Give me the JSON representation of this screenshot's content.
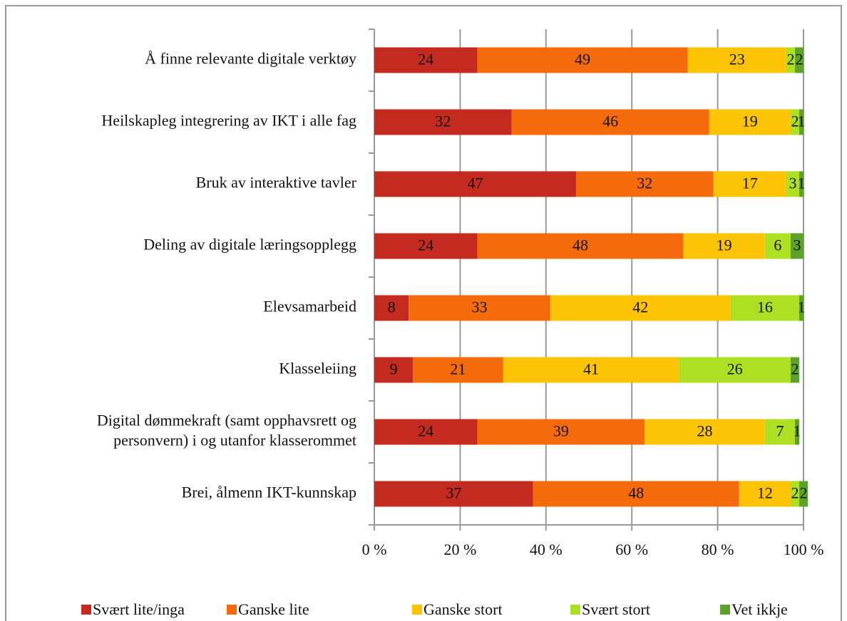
{
  "chart_data": {
    "type": "stacked_bar_horizontal",
    "categories": [
      "Å finne relevante digitale verktøy",
      "Heilskapleg integrering av IKT i alle fag",
      "Bruk av interaktive tavler",
      "Deling av digitale læringsopplegg",
      "Elevsamarbeid",
      "Klasseleiing",
      "Digital dømmekraft (samt opphavsrett og\npersonvern) i og utanfor klasserommet",
      "Brei, ålmenn IKT-kunnskap"
    ],
    "series": [
      {
        "name": "Svært lite/inga",
        "color": "#c42a1f",
        "values": [
          24,
          32,
          47,
          24,
          8,
          9,
          24,
          37
        ]
      },
      {
        "name": "Ganske lite",
        "color": "#f56b0c",
        "values": [
          49,
          46,
          32,
          48,
          33,
          21,
          39,
          48
        ]
      },
      {
        "name": "Ganske stort",
        "color": "#fcc404",
        "values": [
          23,
          19,
          17,
          19,
          42,
          41,
          28,
          12
        ]
      },
      {
        "name": "Svært stort",
        "color": "#addf22",
        "values": [
          2,
          2,
          3,
          6,
          16,
          26,
          7,
          2
        ]
      },
      {
        "name": "Vet ikkje",
        "color": "#5ea22e",
        "values": [
          2,
          1,
          1,
          3,
          1,
          2,
          1,
          2
        ]
      }
    ],
    "xlim": [
      0,
      100
    ],
    "xticks": [
      {
        "value": 0,
        "label": "0 %"
      },
      {
        "value": 20,
        "label": "20 %"
      },
      {
        "value": 40,
        "label": "40 %"
      },
      {
        "value": 60,
        "label": "60 %"
      },
      {
        "value": 80,
        "label": "80 %"
      },
      {
        "value": 100,
        "label": "100 %"
      }
    ],
    "grid": true,
    "legend": "bottom"
  }
}
